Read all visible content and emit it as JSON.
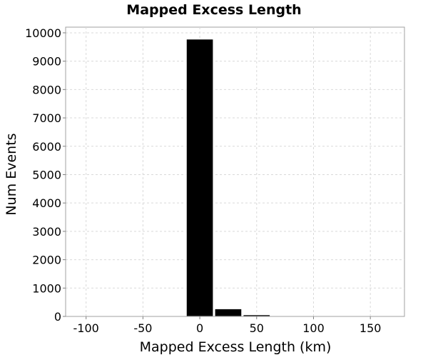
{
  "chart_data": {
    "type": "bar",
    "title": "Mapped Excess Length",
    "xlabel": "Mapped Excess Length (km)",
    "ylabel": "Num Events",
    "xlim": [
      -118,
      180
    ],
    "ylim": [
      0,
      10200
    ],
    "xticks": [
      -100,
      -50,
      0,
      50,
      100,
      150
    ],
    "yticks": [
      0,
      1000,
      2000,
      3000,
      4000,
      5000,
      6000,
      7000,
      8000,
      9000,
      10000
    ],
    "bin_width": 25,
    "x": [
      -100,
      -75,
      -50,
      -25,
      0,
      25,
      50,
      75,
      100,
      125,
      150
    ],
    "values": [
      1,
      1,
      2,
      15,
      9780,
      270,
      60,
      10,
      2,
      1,
      1
    ],
    "grid": true,
    "legend": "none",
    "bar_color": "#000000"
  }
}
